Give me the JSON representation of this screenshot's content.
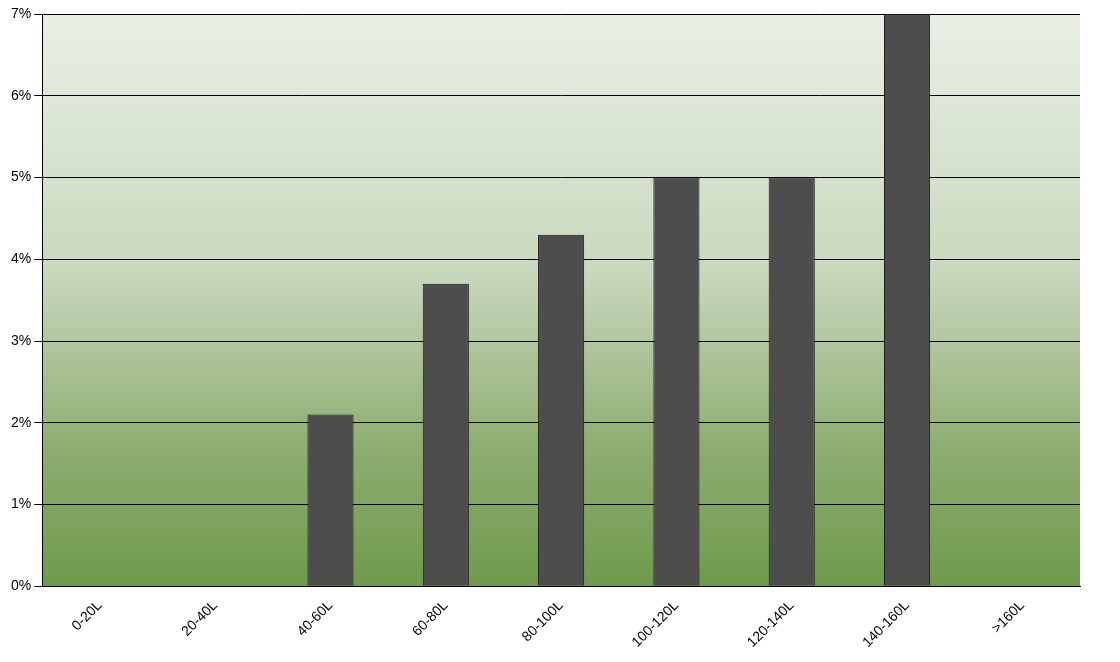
{
  "chart_data": {
    "type": "bar",
    "categories": [
      "0-20L",
      "20-40L",
      "40-60L",
      "60-80L",
      "80-100L",
      "100-120L",
      "120-140L",
      "140-160L",
      ">160L"
    ],
    "values": [
      0,
      0,
      2.1,
      3.7,
      4.3,
      5.0,
      5.0,
      7.0,
      0
    ],
    "color": "#4d4d4d",
    "ylim": [
      0,
      7
    ],
    "yticks": [
      {
        "value": 0,
        "label": "0%"
      },
      {
        "value": 1,
        "label": "1%"
      },
      {
        "value": 2,
        "label": "2%"
      },
      {
        "value": 3,
        "label": "3%"
      },
      {
        "value": 4,
        "label": "4%"
      },
      {
        "value": 5,
        "label": "5%"
      },
      {
        "value": 6,
        "label": "6%"
      },
      {
        "value": 7,
        "label": "7%"
      }
    ],
    "grid": true
  }
}
